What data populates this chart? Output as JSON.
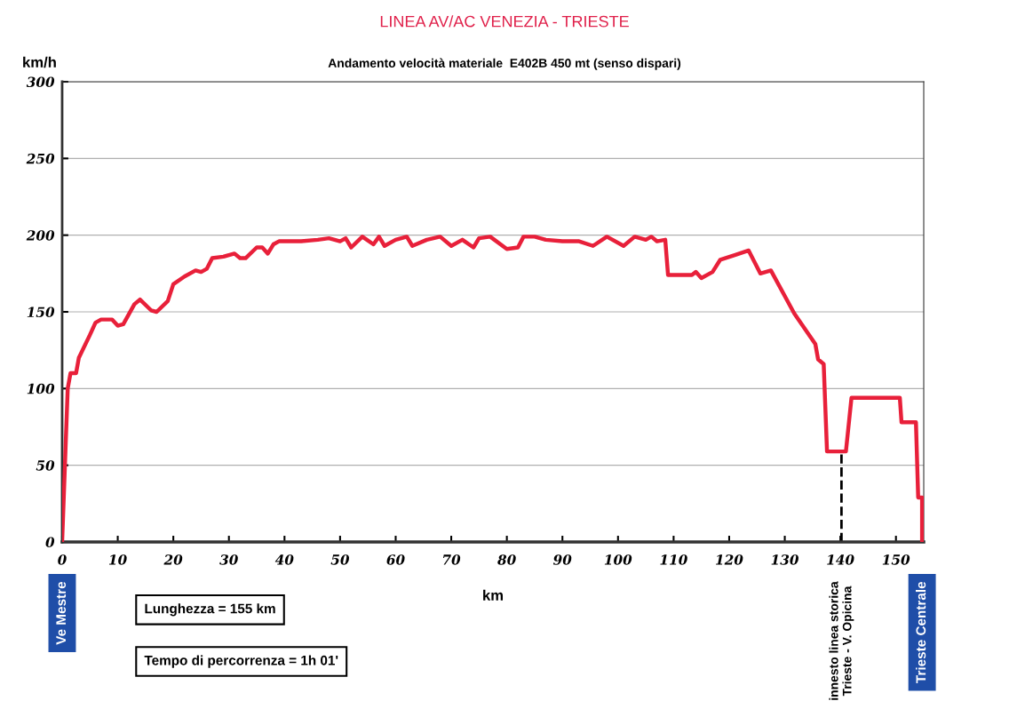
{
  "chart_data": {
    "type": "line",
    "title": "LINEA AV/AC VENEZIA - TRIESTE",
    "subtitle": "Andamento velocità materiale  E402B 450 mt (senso dispari)",
    "xlabel": "km",
    "ylabel": "km/h",
    "x": [
      0,
      1,
      1.5,
      2.5,
      3,
      5,
      6,
      7,
      9,
      10,
      11,
      13,
      14,
      16,
      17,
      19,
      20,
      22,
      24,
      25,
      26,
      27,
      29,
      30,
      31,
      32,
      33,
      35,
      36,
      37,
      38,
      39,
      43,
      46,
      48,
      50,
      51,
      52,
      54,
      56,
      57,
      58,
      60,
      62,
      63,
      65.6,
      68,
      70,
      72,
      74,
      75,
      77,
      80,
      82,
      83,
      85,
      87,
      90,
      93,
      95.5,
      98,
      101,
      103,
      105,
      106,
      107,
      108.5,
      109,
      113.3,
      114,
      115,
      117,
      118.4,
      121,
      123.5,
      125.6,
      127.5,
      131.7,
      135.5,
      136,
      137,
      137.6,
      141,
      142,
      150.7,
      151,
      153.6,
      154,
      154.7,
      154.7
    ],
    "series": [
      {
        "color": "#e8203a",
        "values": [
          0,
          100,
          110,
          110,
          120,
          135,
          143,
          145,
          145,
          141,
          142,
          155,
          158,
          151,
          150,
          157,
          168,
          173,
          177,
          176,
          178,
          185,
          186,
          187,
          188,
          185,
          185,
          192,
          192,
          188,
          194,
          196,
          196,
          197,
          198,
          196,
          198,
          192,
          199,
          194,
          199,
          193,
          197,
          199,
          193,
          197,
          199,
          193,
          197,
          192,
          198,
          199,
          191,
          192,
          199,
          199,
          197,
          196,
          196,
          193,
          199,
          193,
          199,
          197,
          199,
          196,
          197,
          174,
          174,
          176,
          172,
          176,
          184,
          187,
          190,
          175,
          177,
          149,
          129,
          119,
          116,
          59,
          59,
          94,
          94,
          78,
          78,
          29,
          29,
          0
        ]
      }
    ],
    "xlim": [
      0,
      155
    ],
    "xticks": [
      0,
      10,
      20,
      30,
      40,
      50,
      60,
      70,
      80,
      90,
      100,
      110,
      120,
      130,
      140,
      150
    ],
    "ylim": [
      0,
      300
    ],
    "yticks": [
      0,
      50,
      100,
      150,
      200,
      250,
      300
    ],
    "grid": "y",
    "marker": "none",
    "line_style": "solid",
    "ref_lines": [
      {
        "axis": "x",
        "value": 140.2,
        "label": "innesto linea storica\nTrieste - V. Opicina",
        "color": "#000000",
        "line_style": "dashed"
      }
    ],
    "annotations": [
      {
        "text": "Ve Mestre",
        "x": 0,
        "y": 0
      },
      {
        "text": "Trieste Centrale",
        "x": 154.7,
        "y": 0
      },
      "Lunghezza = 155 km",
      "Tempo di percorrenza = 1h 01'"
    ]
  }
}
